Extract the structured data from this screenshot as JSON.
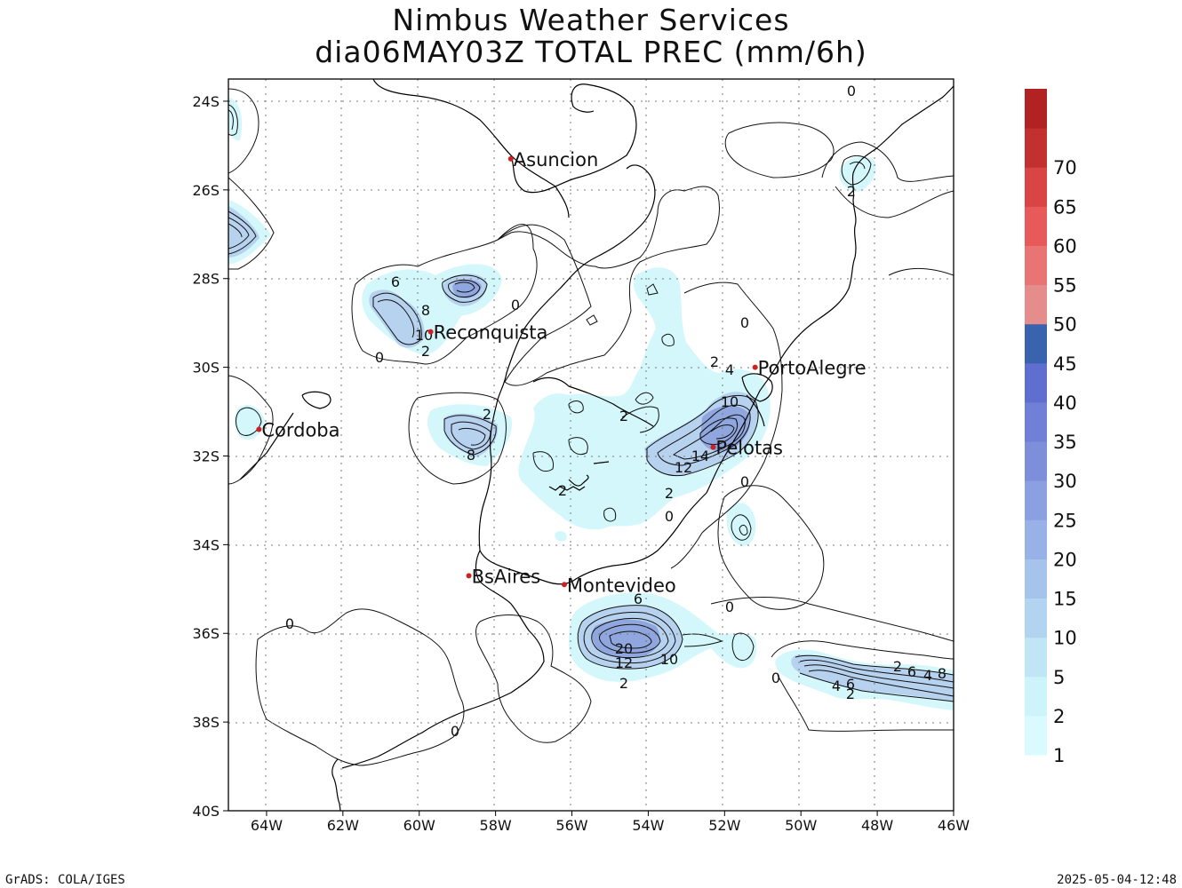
{
  "title": {
    "line1": "Nimbus Weather Services",
    "line2": "dia06MAY03Z TOTAL PREC (mm/6h)"
  },
  "footer": {
    "left": "GrADS: COLA/IGES",
    "right": "2025-05-04-12:48"
  },
  "map": {
    "lon_range": [
      -65,
      -46
    ],
    "lat_range": [
      -40,
      -23.5
    ],
    "lon_ticks": [
      "64W",
      "62W",
      "60W",
      "58W",
      "56W",
      "54W",
      "52W",
      "50W",
      "48W",
      "46W"
    ],
    "lat_ticks": [
      "24S",
      "26S",
      "28S",
      "30S",
      "32S",
      "34S",
      "36S",
      "38S",
      "40S"
    ],
    "grid": "dotted",
    "cities": [
      {
        "name": "Asuncion",
        "lon": -57.6,
        "lat": -25.3
      },
      {
        "name": "Reconquista",
        "lon": -59.7,
        "lat": -29.2
      },
      {
        "name": "PortoAlegre",
        "lon": -51.2,
        "lat": -30.0
      },
      {
        "name": "Cordoba",
        "lon": -64.2,
        "lat": -31.4
      },
      {
        "name": "Pelotas",
        "lon": -52.3,
        "lat": -31.8
      },
      {
        "name": "BsAires",
        "lon": -58.7,
        "lat": -34.7
      },
      {
        "name": "Montevideo",
        "lon": -56.2,
        "lat": -34.9
      }
    ],
    "contour_labels": [
      "0",
      "2",
      "4",
      "6",
      "8",
      "10",
      "12",
      "14",
      "20"
    ],
    "city_marker_color": "#cc2222"
  },
  "colorbar": {
    "tick_labels": [
      "1",
      "2",
      "5",
      "10",
      "15",
      "20",
      "25",
      "30",
      "35",
      "40",
      "45",
      "50",
      "55",
      "60",
      "65",
      "70"
    ],
    "levels": [
      {
        "color": "#d9fbff"
      },
      {
        "color": "#cdf4fb"
      },
      {
        "color": "#c0e5f5"
      },
      {
        "color": "#b3d4f0"
      },
      {
        "color": "#a6c3ec"
      },
      {
        "color": "#98b1e6"
      },
      {
        "color": "#8aa0e0"
      },
      {
        "color": "#7d8fda"
      },
      {
        "color": "#6f80d6"
      },
      {
        "color": "#5f6fcf"
      },
      {
        "color": "#3a63ae"
      },
      {
        "color": "#e58c8c"
      },
      {
        "color": "#e87474"
      },
      {
        "color": "#e85959"
      },
      {
        "color": "#d94444"
      },
      {
        "color": "#c23030"
      },
      {
        "color": "#b22222"
      }
    ]
  },
  "colors": {
    "light_fill": "#d4f7fb",
    "mid_fill": "#b7d2ef",
    "deep_fill": "#8fa6de",
    "contour": "#111111"
  }
}
